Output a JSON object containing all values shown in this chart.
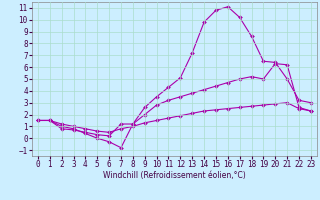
{
  "xlabel": "Windchill (Refroidissement éolien,°C)",
  "background_color": "#cceeff",
  "grid_color": "#aaddcc",
  "line_color": "#aa00aa",
  "xlim": [
    -0.5,
    23.5
  ],
  "ylim": [
    -1.5,
    11.5
  ],
  "xticks": [
    0,
    1,
    2,
    3,
    4,
    5,
    6,
    7,
    8,
    9,
    10,
    11,
    12,
    13,
    14,
    15,
    16,
    17,
    18,
    19,
    20,
    21,
    22,
    23
  ],
  "yticks": [
    -1,
    0,
    1,
    2,
    3,
    4,
    5,
    6,
    7,
    8,
    9,
    10,
    11
  ],
  "line1_x": [
    0,
    1,
    2,
    3,
    4,
    5,
    6,
    7,
    8,
    9,
    10,
    11,
    12,
    13,
    14,
    15,
    16,
    17,
    18,
    19,
    20,
    21,
    22,
    23
  ],
  "line1_y": [
    1.5,
    1.5,
    1.0,
    0.8,
    0.4,
    0.0,
    -0.3,
    -0.8,
    1.2,
    2.6,
    3.5,
    4.3,
    5.1,
    7.2,
    9.8,
    10.8,
    11.1,
    10.2,
    8.6,
    6.5,
    6.4,
    5.0,
    3.2,
    3.0
  ],
  "line2_x": [
    0,
    1,
    2,
    3,
    4,
    5,
    6,
    7,
    8,
    9,
    10,
    11,
    12,
    13,
    14,
    15,
    16,
    17,
    18,
    19,
    20,
    21,
    22,
    23
  ],
  "line2_y": [
    1.5,
    1.5,
    0.8,
    0.7,
    0.5,
    0.3,
    0.2,
    1.2,
    1.2,
    2.0,
    2.8,
    3.2,
    3.5,
    3.8,
    4.1,
    4.4,
    4.7,
    5.0,
    5.2,
    5.0,
    6.3,
    6.2,
    2.6,
    2.3
  ],
  "line3_x": [
    0,
    1,
    2,
    3,
    4,
    5,
    6,
    7,
    8,
    9,
    10,
    11,
    12,
    13,
    14,
    15,
    16,
    17,
    18,
    19,
    20,
    21,
    22,
    23
  ],
  "line3_y": [
    1.5,
    1.5,
    1.2,
    1.0,
    0.8,
    0.6,
    0.5,
    0.8,
    1.0,
    1.3,
    1.5,
    1.7,
    1.9,
    2.1,
    2.3,
    2.4,
    2.5,
    2.6,
    2.7,
    2.8,
    2.9,
    3.0,
    2.5,
    2.3
  ],
  "tick_fontsize": 5.5,
  "xlabel_fontsize": 5.5,
  "xlabel_color": "#440044",
  "tick_color": "#440044"
}
